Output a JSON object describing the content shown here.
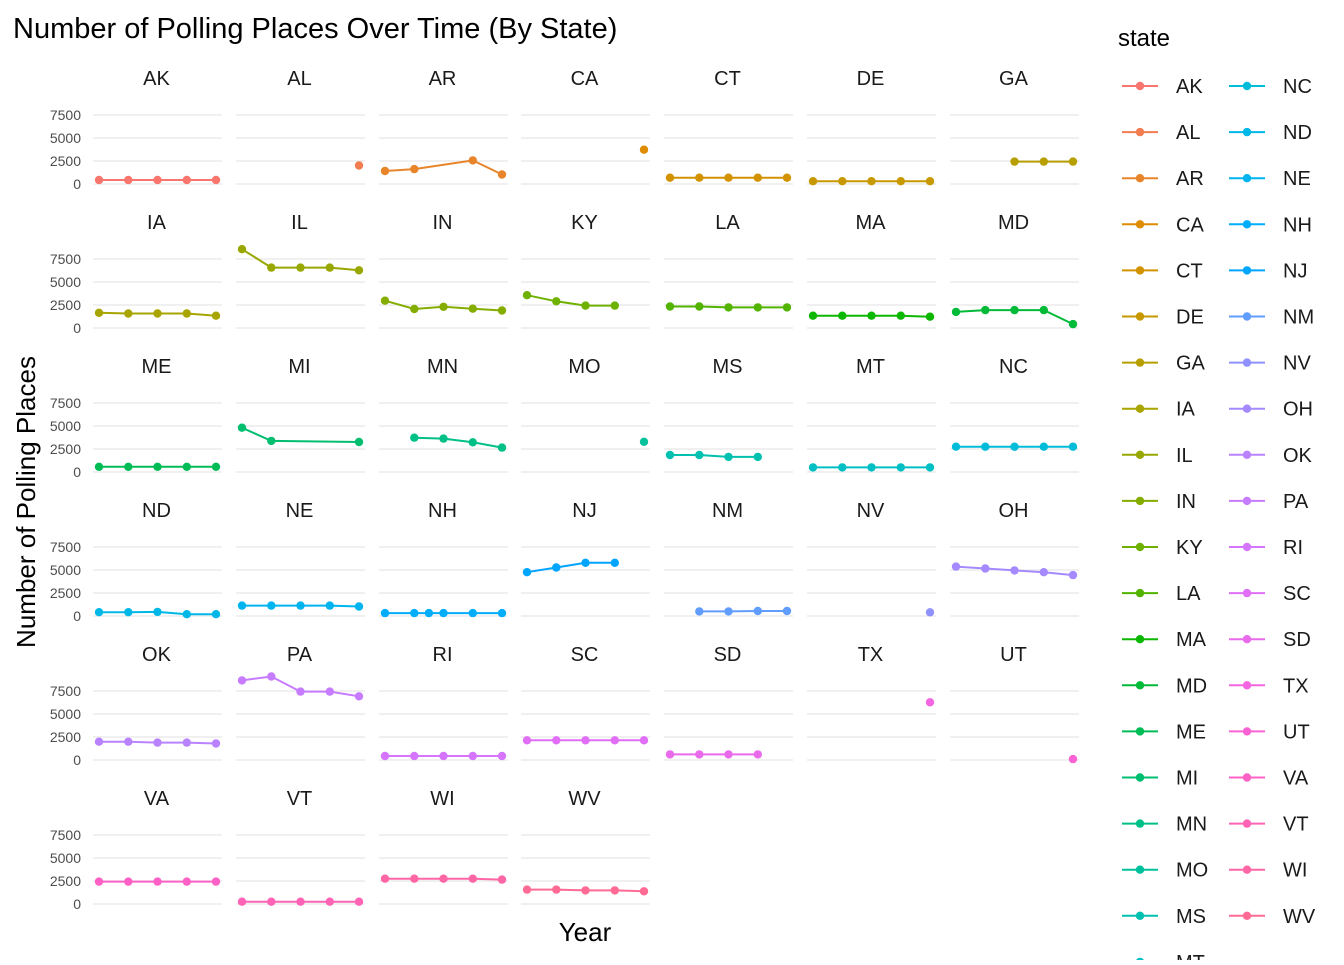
{
  "chart_data": {
    "type": "line",
    "title": "Number of Polling Places Over Time (By State)",
    "xlabel": "Year",
    "ylabel": "Number of Polling Places",
    "ylim": [
      0,
      8600
    ],
    "y_ticks": [
      "0",
      "2500",
      "5000",
      "7500"
    ],
    "x_range": [
      2012,
      2020
    ],
    "grid": true,
    "legend_title": "state",
    "legend_placement": "right",
    "panels": [
      {
        "state": "AK",
        "color": "#F8766D",
        "points": [
          [
            2012,
            440
          ],
          [
            2014,
            440
          ],
          [
            2016,
            440
          ],
          [
            2018,
            440
          ],
          [
            2020,
            440
          ]
        ]
      },
      {
        "state": "AL",
        "color": "#F17D51",
        "points": [
          [
            2020,
            2010
          ]
        ]
      },
      {
        "state": "AR",
        "color": "#E8852B",
        "points": [
          [
            2012,
            1410
          ],
          [
            2014,
            1620
          ],
          [
            2018,
            2570
          ],
          [
            2020,
            1030
          ]
        ]
      },
      {
        "state": "CA",
        "color": "#DE8C00",
        "points": [
          [
            2020,
            3730
          ]
        ]
      },
      {
        "state": "CT",
        "color": "#D39200",
        "points": [
          [
            2012,
            680
          ],
          [
            2014,
            680
          ],
          [
            2016,
            680
          ],
          [
            2018,
            680
          ],
          [
            2020,
            680
          ]
        ]
      },
      {
        "state": "DE",
        "color": "#C79800",
        "points": [
          [
            2012,
            300
          ],
          [
            2014,
            300
          ],
          [
            2016,
            300
          ],
          [
            2018,
            300
          ],
          [
            2020,
            300
          ]
        ]
      },
      {
        "state": "GA",
        "color": "#B79F00",
        "points": [
          [
            2016,
            2440
          ],
          [
            2018,
            2440
          ],
          [
            2020,
            2440
          ]
        ]
      },
      {
        "state": "IA",
        "color": "#A8A400",
        "points": [
          [
            2012,
            1650
          ],
          [
            2014,
            1580
          ],
          [
            2016,
            1580
          ],
          [
            2018,
            1580
          ],
          [
            2020,
            1340
          ]
        ]
      },
      {
        "state": "IL",
        "color": "#98A800",
        "points": [
          [
            2012,
            8570
          ],
          [
            2014,
            6570
          ],
          [
            2016,
            6570
          ],
          [
            2018,
            6570
          ],
          [
            2020,
            6270
          ]
        ]
      },
      {
        "state": "IN",
        "color": "#85AD00",
        "points": [
          [
            2012,
            2970
          ],
          [
            2014,
            2070
          ],
          [
            2016,
            2300
          ],
          [
            2018,
            2100
          ],
          [
            2020,
            1900
          ]
        ]
      },
      {
        "state": "KY",
        "color": "#6FB100",
        "points": [
          [
            2012,
            3570
          ],
          [
            2014,
            2900
          ],
          [
            2016,
            2440
          ],
          [
            2018,
            2440
          ]
        ]
      },
      {
        "state": "LA",
        "color": "#52B400",
        "points": [
          [
            2012,
            2340
          ],
          [
            2014,
            2340
          ],
          [
            2016,
            2240
          ],
          [
            2018,
            2240
          ],
          [
            2020,
            2240
          ]
        ]
      },
      {
        "state": "MA",
        "color": "#0CB702",
        "points": [
          [
            2012,
            1340
          ],
          [
            2014,
            1340
          ],
          [
            2016,
            1340
          ],
          [
            2018,
            1340
          ],
          [
            2020,
            1230
          ]
        ]
      },
      {
        "state": "MD",
        "color": "#00BA38",
        "points": [
          [
            2012,
            1750
          ],
          [
            2014,
            1950
          ],
          [
            2016,
            1950
          ],
          [
            2018,
            1950
          ],
          [
            2020,
            420
          ]
        ]
      },
      {
        "state": "ME",
        "color": "#00BC56",
        "points": [
          [
            2012,
            560
          ],
          [
            2014,
            560
          ],
          [
            2016,
            560
          ],
          [
            2018,
            560
          ],
          [
            2020,
            560
          ]
        ]
      },
      {
        "state": "MI",
        "color": "#00BE70",
        "points": [
          [
            2012,
            4820
          ],
          [
            2014,
            3380
          ],
          [
            2020,
            3260
          ]
        ]
      },
      {
        "state": "MN",
        "color": "#00C087",
        "points": [
          [
            2014,
            3730
          ],
          [
            2016,
            3630
          ],
          [
            2018,
            3230
          ],
          [
            2020,
            2650
          ]
        ]
      },
      {
        "state": "MO",
        "color": "#00C19C",
        "points": [
          [
            2020,
            3280
          ]
        ]
      },
      {
        "state": "MS",
        "color": "#00C0AF",
        "points": [
          [
            2012,
            1850
          ],
          [
            2014,
            1850
          ],
          [
            2016,
            1640
          ],
          [
            2018,
            1640
          ]
        ]
      },
      {
        "state": "MT",
        "color": "#00BFC4",
        "points": [
          [
            2012,
            500
          ],
          [
            2014,
            500
          ],
          [
            2016,
            500
          ],
          [
            2018,
            500
          ],
          [
            2020,
            500
          ]
        ]
      },
      {
        "state": "NC",
        "color": "#00BCD8",
        "points": [
          [
            2012,
            2750
          ],
          [
            2014,
            2750
          ],
          [
            2016,
            2750
          ],
          [
            2018,
            2750
          ],
          [
            2020,
            2750
          ]
        ]
      },
      {
        "state": "ND",
        "color": "#00B8E7",
        "points": [
          [
            2012,
            410
          ],
          [
            2014,
            410
          ],
          [
            2016,
            450
          ],
          [
            2018,
            200
          ],
          [
            2020,
            200
          ]
        ]
      },
      {
        "state": "NE",
        "color": "#00B4F0",
        "points": [
          [
            2012,
            1130
          ],
          [
            2014,
            1130
          ],
          [
            2016,
            1130
          ],
          [
            2018,
            1130
          ],
          [
            2020,
            1030
          ]
        ]
      },
      {
        "state": "NH",
        "color": "#00ADFA",
        "points": [
          [
            2012,
            310
          ],
          [
            2014,
            310
          ],
          [
            2015,
            310
          ],
          [
            2016,
            310
          ],
          [
            2018,
            310
          ],
          [
            2020,
            310
          ]
        ]
      },
      {
        "state": "NJ",
        "color": "#00A5FF",
        "points": [
          [
            2012,
            4760
          ],
          [
            2014,
            5270
          ],
          [
            2016,
            5780
          ],
          [
            2018,
            5780
          ]
        ]
      },
      {
        "state": "NM",
        "color": "#619CFF",
        "points": [
          [
            2014,
            500
          ],
          [
            2016,
            500
          ],
          [
            2018,
            540
          ],
          [
            2020,
            540
          ]
        ]
      },
      {
        "state": "NV",
        "color": "#8F91FF",
        "points": [
          [
            2020,
            400
          ]
        ]
      },
      {
        "state": "OH",
        "color": "#A58AFF",
        "points": [
          [
            2012,
            5370
          ],
          [
            2014,
            5160
          ],
          [
            2016,
            4960
          ],
          [
            2018,
            4760
          ],
          [
            2020,
            4450
          ]
        ]
      },
      {
        "state": "OK",
        "color": "#B983FF",
        "points": [
          [
            2012,
            1990
          ],
          [
            2014,
            1990
          ],
          [
            2016,
            1890
          ],
          [
            2018,
            1890
          ],
          [
            2020,
            1790
          ]
        ]
      },
      {
        "state": "PA",
        "color": "#C77CFF",
        "points": [
          [
            2012,
            8650
          ],
          [
            2014,
            9080
          ],
          [
            2016,
            7440
          ],
          [
            2018,
            7440
          ],
          [
            2020,
            6920
          ]
        ]
      },
      {
        "state": "RI",
        "color": "#D575FE",
        "points": [
          [
            2012,
            440
          ],
          [
            2014,
            440
          ],
          [
            2016,
            440
          ],
          [
            2018,
            440
          ],
          [
            2020,
            440
          ]
        ]
      },
      {
        "state": "SC",
        "color": "#E06FF6",
        "points": [
          [
            2012,
            2140
          ],
          [
            2014,
            2140
          ],
          [
            2016,
            2140
          ],
          [
            2018,
            2140
          ],
          [
            2020,
            2140
          ]
        ]
      },
      {
        "state": "SD",
        "color": "#EA6AEC",
        "points": [
          [
            2012,
            610
          ],
          [
            2014,
            610
          ],
          [
            2016,
            610
          ],
          [
            2018,
            610
          ]
        ]
      },
      {
        "state": "TX",
        "color": "#F365E1",
        "points": [
          [
            2020,
            6270
          ]
        ]
      },
      {
        "state": "UT",
        "color": "#F962D4",
        "points": [
          [
            2020,
            100
          ]
        ]
      },
      {
        "state": "VA",
        "color": "#FD61C5",
        "points": [
          [
            2012,
            2440
          ],
          [
            2014,
            2440
          ],
          [
            2016,
            2440
          ],
          [
            2018,
            2440
          ],
          [
            2020,
            2440
          ]
        ]
      },
      {
        "state": "VT",
        "color": "#FF63B6",
        "points": [
          [
            2012,
            250
          ],
          [
            2014,
            250
          ],
          [
            2016,
            250
          ],
          [
            2018,
            250
          ],
          [
            2020,
            250
          ]
        ]
      },
      {
        "state": "WI",
        "color": "#FF66A5",
        "points": [
          [
            2012,
            2750
          ],
          [
            2014,
            2750
          ],
          [
            2016,
            2750
          ],
          [
            2018,
            2750
          ],
          [
            2020,
            2650
          ]
        ]
      },
      {
        "state": "WV",
        "color": "#FF6B94",
        "points": [
          [
            2012,
            1570
          ],
          [
            2014,
            1570
          ],
          [
            2016,
            1480
          ],
          [
            2018,
            1480
          ],
          [
            2020,
            1380
          ]
        ]
      }
    ],
    "legend_items": [
      "AK",
      "AL",
      "AR",
      "CA",
      "CT",
      "DE",
      "GA",
      "IA",
      "IL",
      "IN",
      "KY",
      "LA",
      "MA",
      "MD",
      "ME",
      "MI",
      "MN",
      "MO",
      "MS",
      "MT",
      "NC",
      "ND",
      "NE",
      "NH",
      "NJ",
      "NM",
      "NV",
      "OH",
      "OK",
      "PA",
      "RI",
      "SC",
      "SD",
      "TX",
      "UT",
      "VA",
      "VT",
      "WI",
      "WV"
    ]
  }
}
